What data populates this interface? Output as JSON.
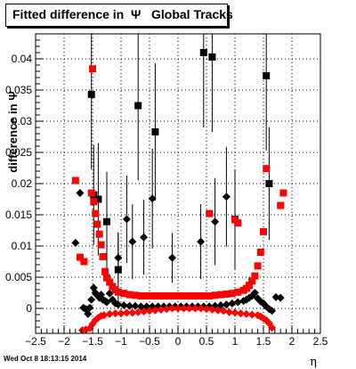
{
  "title": "Fitted difference in  Ψ   Global Tracks",
  "footer": "Wed Oct  8 18:13:15 2014",
  "chart_data": {
    "type": "scatter",
    "title": "Fitted difference in  Ψ   Global Tracks",
    "xlabel": "η",
    "ylabel": "difference in Ψ",
    "xlim": [
      -2.5,
      2.5
    ],
    "ylim": [
      -0.004,
      0.044
    ],
    "x_ticks": [
      "−2.5",
      "−2",
      "−1.5",
      "−1",
      "−0.5",
      "0",
      "0.5",
      "1",
      "1.5",
      "2",
      "2.5"
    ],
    "y_ticks": [
      "0",
      "0.005",
      "0.01",
      "0.015",
      "0.02",
      "0.025",
      "0.03",
      "0.035",
      "0.04"
    ],
    "grid": true,
    "colors": {
      "series_a": "#000000",
      "series_b": "#ff0000"
    },
    "series": [
      {
        "marker": "diamond",
        "color": "#000000",
        "x": [
          -1.8,
          -1.72,
          -1.66,
          -1.62,
          -1.58,
          -1.55,
          -1.52,
          -1.48,
          -1.45,
          -1.42,
          -1.38,
          -1.35,
          -1.32,
          -1.28,
          -1.25,
          -1.2,
          -1.15,
          -1.1,
          -1.05,
          -0.95,
          -0.85,
          -0.75,
          -0.65,
          -0.55,
          -0.45,
          -0.35,
          -0.25,
          -0.15,
          -0.05,
          0.05,
          0.15,
          0.25,
          0.35,
          0.45,
          0.55,
          0.65,
          0.75,
          0.85,
          0.95,
          1.05,
          1.15,
          1.2,
          1.25,
          1.3,
          1.35,
          1.4,
          1.45,
          1.5,
          1.55,
          1.6,
          1.65,
          1.72,
          1.8
        ],
        "y": [
          0.0105,
          0.0185,
          0.0001,
          -0.0001,
          -0.0009,
          0.0001,
          0.0014,
          0.0033,
          0.0025,
          0.0021,
          0.0017,
          0.0022,
          0.0014,
          0.0012,
          0.001,
          0.0024,
          0.0014,
          0.0008,
          0.0006,
          0.0005,
          0.0004,
          0.0004,
          0.0003,
          0.0003,
          0.0003,
          0.0003,
          0.0003,
          0.0003,
          0.0003,
          0.0003,
          0.0003,
          0.0003,
          0.0003,
          0.0003,
          0.0003,
          0.0004,
          0.0005,
          0.0006,
          0.0008,
          0.001,
          0.0012,
          0.0014,
          0.0017,
          0.002,
          0.0025,
          0.0016,
          0.0011,
          0.0008,
          0.0003,
          -0.0001,
          -0.0004,
          0.0018,
          0.0017
        ]
      },
      {
        "marker": "square",
        "color": "#000000",
        "x": [
          -1.52,
          -1.48,
          -1.4,
          -1.25,
          -1.05,
          -0.7,
          -0.4,
          0.45,
          0.6,
          1.0,
          1.55,
          1.6
        ],
        "y": [
          0.0343,
          0.0182,
          0.0175,
          0.0139,
          0.0062,
          0.0325,
          0.0283,
          0.041,
          0.0403,
          0.0143,
          0.0373,
          0.02
        ],
        "y_error": [
          0.012,
          0.008,
          0.009,
          0.008,
          0.006,
          0.012,
          0.011,
          0.012,
          0.012,
          0.008,
          0.012,
          0.009
        ]
      },
      {
        "marker": "diamond",
        "color": "#000000",
        "x": [
          -1.05,
          -0.9,
          -0.8,
          -0.6,
          -0.45,
          -0.1,
          0.4,
          0.65,
          0.85
        ],
        "y": [
          0.0081,
          0.0143,
          0.0107,
          0.0114,
          0.0176,
          0.0081,
          0.0107,
          0.0139,
          0.0179
        ],
        "y_error": [
          0.004,
          0.007,
          0.006,
          0.006,
          0.008,
          0.004,
          0.006,
          0.007,
          0.008
        ]
      },
      {
        "marker": "square",
        "color": "#ff0000",
        "x": [
          -1.52,
          -1.48,
          -1.45,
          -1.42,
          -1.38,
          -1.35,
          -1.32,
          -1.28,
          -1.25,
          -1.2,
          -1.15,
          -1.1,
          -1.05,
          -0.95,
          -0.85,
          -0.75,
          -0.65,
          -0.55,
          -0.45,
          -0.35,
          -0.25,
          -0.15,
          -0.05,
          0.05,
          0.15,
          0.25,
          0.35,
          0.45,
          0.55,
          0.65,
          0.75,
          0.85,
          0.95,
          1.05,
          1.15,
          1.2,
          1.25,
          1.3,
          1.35,
          1.4,
          1.45,
          1.5,
          1.55
        ],
        "y": [
          0.0185,
          0.0171,
          0.0152,
          0.0135,
          0.0119,
          0.0102,
          0.0083,
          0.0059,
          0.0049,
          0.0042,
          0.0035,
          0.003,
          0.0026,
          0.0024,
          0.0022,
          0.0021,
          0.002,
          0.002,
          0.002,
          0.002,
          0.002,
          0.002,
          0.002,
          0.002,
          0.002,
          0.002,
          0.002,
          0.002,
          0.002,
          0.0021,
          0.0022,
          0.0023,
          0.0024,
          0.0026,
          0.0029,
          0.0032,
          0.0037,
          0.0044,
          0.0052,
          0.0068,
          0.009,
          0.0123,
          0.0224
        ]
      },
      {
        "marker": "square",
        "color": "#ff0000",
        "x": [
          -1.8,
          -1.72,
          -1.65,
          -1.5,
          0.55,
          1.0,
          1.05,
          1.8,
          1.85
        ],
        "y": [
          0.0205,
          0.0082,
          0.0075,
          0.0384,
          0.0152,
          0.0142,
          0.0137,
          0.0165,
          0.0185
        ]
      },
      {
        "marker": "diamond",
        "color": "#ff0000",
        "x": [
          -1.68,
          -1.62,
          -1.55,
          -1.5,
          -1.45,
          -1.4,
          -1.35,
          -1.3,
          -1.2,
          -1.1,
          -1.0,
          -0.9,
          -0.8,
          -0.7,
          -0.6,
          -0.5,
          -0.4,
          -0.3,
          -0.2,
          -0.1,
          0.0,
          0.1,
          0.2,
          0.3,
          0.4,
          0.5,
          0.6,
          0.7,
          0.8,
          0.9,
          1.0,
          1.1,
          1.2,
          1.3,
          1.4,
          1.45,
          1.5,
          1.55,
          1.6,
          1.65
        ],
        "y": [
          -0.0035,
          -0.0034,
          -0.0032,
          -0.0025,
          -0.0019,
          -0.0015,
          -0.0012,
          -0.0011,
          -0.0009,
          -0.0008,
          -0.0008,
          -0.0007,
          -0.0007,
          -0.0006,
          -0.0005,
          -0.0004,
          -0.0003,
          -0.0002,
          -0.0001,
          0.0,
          0.0,
          0.0,
          0.0,
          0.0,
          0.0,
          -0.0001,
          -0.0002,
          -0.0003,
          -0.0004,
          -0.0006,
          -0.0007,
          -0.0008,
          -0.0009,
          -0.001,
          -0.0011,
          -0.0013,
          -0.0016,
          -0.0019,
          -0.0024,
          -0.0031
        ]
      }
    ]
  }
}
